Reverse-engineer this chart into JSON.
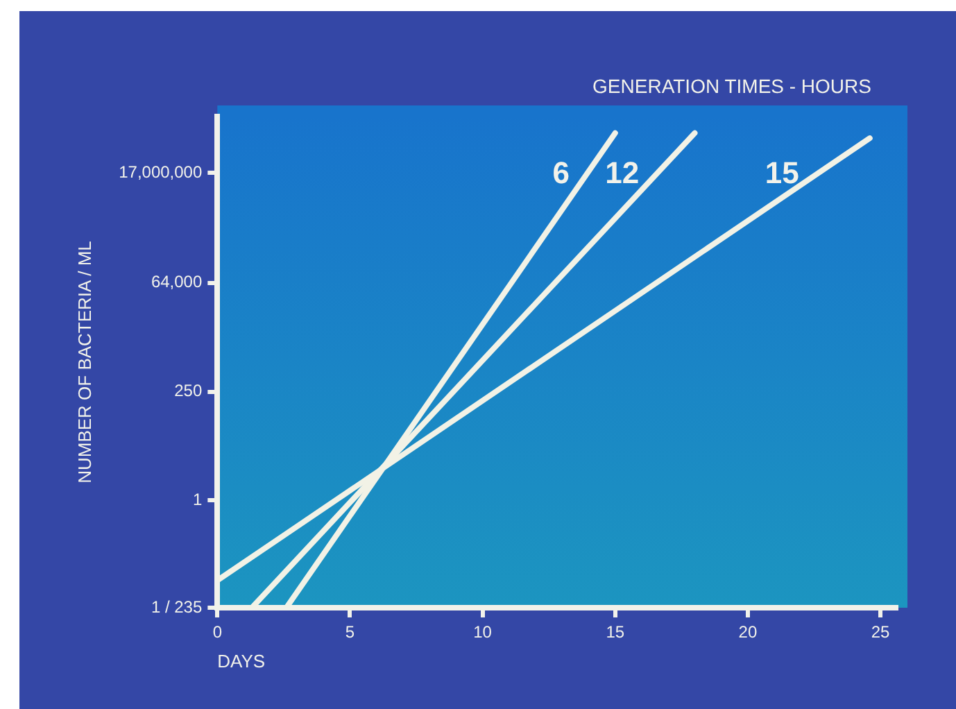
{
  "chart_data": {
    "type": "line",
    "legend_title": "GENERATION TIMES - HOURS",
    "xlabel": "DAYS",
    "ylabel": "NUMBER OF BACTERIA / ML",
    "log": "y",
    "xlim": [
      0,
      25.6
    ],
    "xticks": [
      0,
      5,
      10,
      15,
      20,
      25
    ],
    "ylim": [
      0.004255,
      300000000
    ],
    "yticks": [
      {
        "value": 0.004255,
        "label": "1 / 235"
      },
      1,
      250,
      {
        "value": 64000,
        "label": "64,000"
      },
      {
        "value": 17000000,
        "label": "17,000,000"
      }
    ],
    "grid": false,
    "marker": "none",
    "line_style": "solid",
    "legend": false,
    "series": [
      {
        "name": "6",
        "color": "#f2f2e6",
        "x": [
          2.6,
          15.0
        ],
        "values": [
          0.004255,
          130000000
        ]
      },
      {
        "name": "12",
        "color": "#f2f2e6",
        "x": [
          1.3,
          18.0
        ],
        "values": [
          0.004255,
          130000000
        ]
      },
      {
        "name": "15",
        "color": "#f2f2e6",
        "x": [
          0,
          24.6
        ],
        "values": [
          0.017,
          100000000
        ]
      }
    ]
  }
}
